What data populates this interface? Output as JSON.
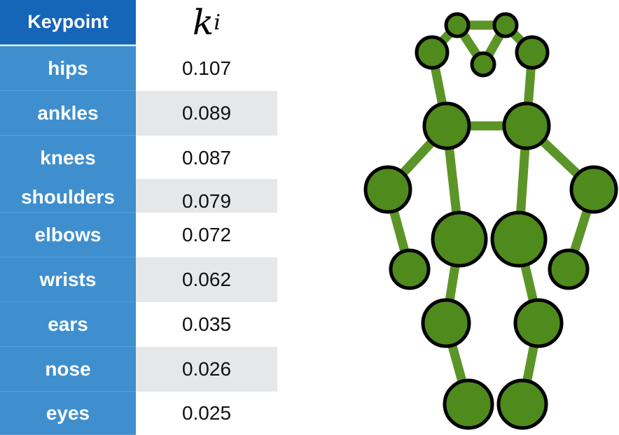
{
  "table": {
    "header": {
      "keypoint": "Keypoint",
      "k_symbol": "k",
      "k_subscript": "i"
    },
    "rows": [
      {
        "keypoint": "hips",
        "value": "0.107"
      },
      {
        "keypoint": "ankles",
        "value": "0.089"
      },
      {
        "keypoint": "knees",
        "value": "0.087"
      },
      {
        "keypoint": "shoulders",
        "value": "0.079"
      },
      {
        "keypoint": "elbows",
        "value": "0.072"
      },
      {
        "keypoint": "wrists",
        "value": "0.062"
      },
      {
        "keypoint": "ears",
        "value": "0.035"
      },
      {
        "keypoint": "nose",
        "value": "0.026"
      },
      {
        "keypoint": "eyes",
        "value": "0.025"
      }
    ]
  },
  "colors": {
    "header_bg": "#1565b8",
    "keypoint_bg": "#3f8fce",
    "row_shade": "#e6e7e9",
    "skeleton_fill": "#4f8a1c",
    "skeleton_outline": "#000000",
    "bone": "#5b9527"
  }
}
